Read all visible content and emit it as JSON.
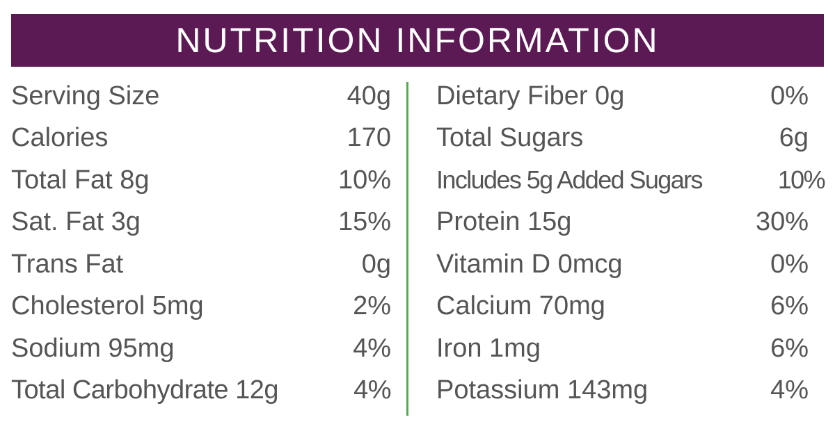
{
  "header": {
    "title": "NUTRITION INFORMATION"
  },
  "colors": {
    "header_bg": "#5c1a55",
    "divider": "#4fae4a",
    "text": "#555555"
  },
  "left_column": [
    {
      "label": "Serving Size",
      "value": "40g"
    },
    {
      "label": "Calories",
      "value": "170"
    },
    {
      "label": "Total Fat 8g",
      "value": "10%"
    },
    {
      "label": "Sat. Fat 3g",
      "value": "15%"
    },
    {
      "label": "Trans Fat",
      "value": "0g"
    },
    {
      "label": "Cholesterol 5mg",
      "value": "2%"
    },
    {
      "label": "Sodium 95mg",
      "value": "4%"
    },
    {
      "label": "Total Carbohydrate 12g",
      "value": "4%"
    }
  ],
  "right_column": [
    {
      "label": "Dietary Fiber 0g",
      "value": "0%"
    },
    {
      "label": "Total Sugars",
      "value": "6g"
    },
    {
      "label": "Includes 5g Added Sugars",
      "value": "10%"
    },
    {
      "label": "Protein 15g",
      "value": "30%"
    },
    {
      "label": "Vitamin D 0mcg",
      "value": "0%"
    },
    {
      "label": "Calcium 70mg",
      "value": "6%"
    },
    {
      "label": "Iron 1mg",
      "value": "6%"
    },
    {
      "label": "Potassium 143mg",
      "value": "4%"
    }
  ]
}
